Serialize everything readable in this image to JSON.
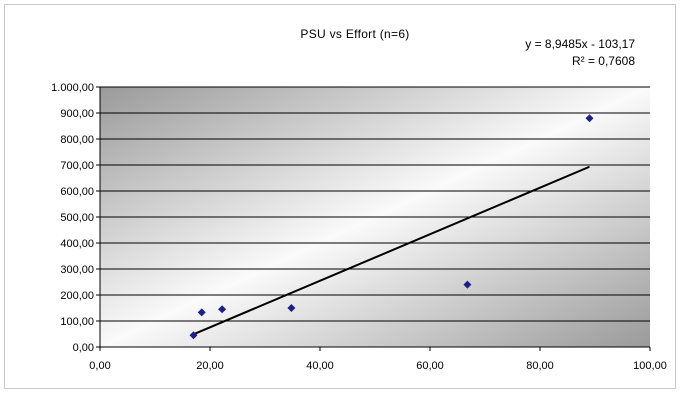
{
  "chart_data": {
    "type": "scatter",
    "title": "PSU vs Effort (n=6)",
    "xlabel": "",
    "ylabel": "",
    "xlim": [
      0,
      100
    ],
    "ylim": [
      0,
      1000
    ],
    "x_ticks": [
      "0,00",
      "20,00",
      "40,00",
      "60,00",
      "80,00",
      "100,00"
    ],
    "y_ticks": [
      "0,00",
      "100,00",
      "200,00",
      "300,00",
      "400,00",
      "500,00",
      "600,00",
      "700,00",
      "800,00",
      "900,00",
      "1.000,00"
    ],
    "grid": true,
    "series": [
      {
        "points": [
          {
            "x": 17,
            "y": 45
          },
          {
            "x": 18.5,
            "y": 133
          },
          {
            "x": 22.2,
            "y": 145
          },
          {
            "x": 34.8,
            "y": 150
          },
          {
            "x": 66.8,
            "y": 240
          },
          {
            "x": 89,
            "y": 880
          }
        ],
        "marker": "diamond",
        "color": "#1f1f8c"
      }
    ],
    "trendline": {
      "type": "linear",
      "slope": 8.9485,
      "intercept": -103.17,
      "x_range": [
        17,
        89
      ],
      "color": "#000000",
      "equation": "y = 8,9485x - 103,17",
      "r_squared": "R² = 0,7608"
    },
    "plot_background": "gradient-grey"
  }
}
